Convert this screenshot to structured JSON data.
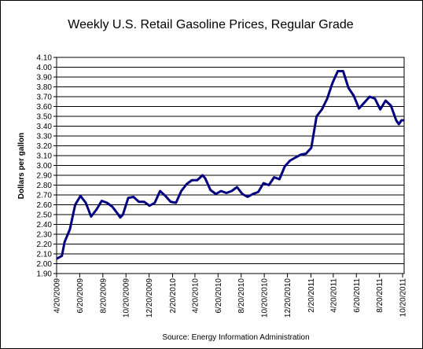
{
  "chart_data": {
    "type": "line",
    "title": "Weekly U.S. Retail Gasoline Prices, Regular Grade",
    "y_label": "Dollars per gallon",
    "source": "Source:  Energy Information Administration",
    "grid": true,
    "xlim": [
      "2009-04-20",
      "2011-10-24"
    ],
    "ylim": [
      1.9,
      4.1
    ],
    "xticks": [
      {
        "value": "2009-04-20",
        "label": "4/20/2009"
      },
      {
        "value": "2009-06-20",
        "label": "6/20/2009"
      },
      {
        "value": "2009-08-20",
        "label": "8/20/2009"
      },
      {
        "value": "2009-10-20",
        "label": "10/20/2009"
      },
      {
        "value": "2009-12-20",
        "label": "12/20/2009"
      },
      {
        "value": "2010-02-20",
        "label": "2/20/2010"
      },
      {
        "value": "2010-04-20",
        "label": "4/20/2010"
      },
      {
        "value": "2010-06-20",
        "label": "6/20/2010"
      },
      {
        "value": "2010-08-20",
        "label": "8/20/2010"
      },
      {
        "value": "2010-10-20",
        "label": "10/20/2010"
      },
      {
        "value": "2010-12-20",
        "label": "12/20/2010"
      },
      {
        "value": "2011-02-20",
        "label": "2/20/2011"
      },
      {
        "value": "2011-04-20",
        "label": "4/20/2011"
      },
      {
        "value": "2011-06-20",
        "label": "6/20/2011"
      },
      {
        "value": "2011-08-20",
        "label": "8/20/2011"
      },
      {
        "value": "2011-10-20",
        "label": "10/20/2011"
      }
    ],
    "yticks": [
      {
        "value": 1.9,
        "label": "1.90"
      },
      {
        "value": 2.0,
        "label": "2.00"
      },
      {
        "value": 2.1,
        "label": "2.10"
      },
      {
        "value": 2.2,
        "label": "2.20"
      },
      {
        "value": 2.3,
        "label": "2.30"
      },
      {
        "value": 2.4,
        "label": "2.40"
      },
      {
        "value": 2.5,
        "label": "2.50"
      },
      {
        "value": 2.6,
        "label": "2.60"
      },
      {
        "value": 2.7,
        "label": "2.70"
      },
      {
        "value": 2.8,
        "label": "2.80"
      },
      {
        "value": 2.9,
        "label": "2.90"
      },
      {
        "value": 3.0,
        "label": "3.00"
      },
      {
        "value": 3.1,
        "label": "3.10"
      },
      {
        "value": 3.2,
        "label": "3.20"
      },
      {
        "value": 3.3,
        "label": "3.30"
      },
      {
        "value": 3.4,
        "label": "3.40"
      },
      {
        "value": 3.5,
        "label": "3.50"
      },
      {
        "value": 3.6,
        "label": "3.60"
      },
      {
        "value": 3.7,
        "label": "3.70"
      },
      {
        "value": 3.8,
        "label": "3.80"
      },
      {
        "value": 3.9,
        "label": "3.90"
      },
      {
        "value": 4.0,
        "label": "4.00"
      },
      {
        "value": 4.1,
        "label": "4.10"
      }
    ],
    "x": [
      "2009-04-20",
      "2009-05-04",
      "2009-05-11",
      "2009-05-25",
      "2009-06-08",
      "2009-06-22",
      "2009-07-06",
      "2009-07-20",
      "2009-08-03",
      "2009-08-17",
      "2009-08-31",
      "2009-09-14",
      "2009-09-28",
      "2009-10-05",
      "2009-10-12",
      "2009-10-26",
      "2009-11-09",
      "2009-11-23",
      "2009-12-07",
      "2009-12-21",
      "2010-01-04",
      "2010-01-18",
      "2010-02-01",
      "2010-02-15",
      "2010-03-01",
      "2010-03-15",
      "2010-03-29",
      "2010-04-12",
      "2010-04-26",
      "2010-05-10",
      "2010-05-17",
      "2010-05-31",
      "2010-06-14",
      "2010-06-28",
      "2010-07-12",
      "2010-07-26",
      "2010-08-09",
      "2010-08-23",
      "2010-09-06",
      "2010-09-20",
      "2010-10-04",
      "2010-10-18",
      "2010-11-01",
      "2010-11-15",
      "2010-11-29",
      "2010-12-13",
      "2010-12-27",
      "2011-01-10",
      "2011-01-24",
      "2011-02-07",
      "2011-02-21",
      "2011-03-07",
      "2011-03-21",
      "2011-04-04",
      "2011-04-18",
      "2011-05-02",
      "2011-05-16",
      "2011-05-30",
      "2011-06-13",
      "2011-06-27",
      "2011-07-11",
      "2011-07-25",
      "2011-08-08",
      "2011-08-22",
      "2011-09-05",
      "2011-09-19",
      "2011-10-03",
      "2011-10-10",
      "2011-10-17",
      "2011-10-24"
    ],
    "series": [
      {
        "color": "#000080",
        "values": [
          2.05,
          2.08,
          2.22,
          2.35,
          2.6,
          2.69,
          2.62,
          2.48,
          2.55,
          2.64,
          2.62,
          2.58,
          2.51,
          2.47,
          2.5,
          2.67,
          2.68,
          2.63,
          2.63,
          2.59,
          2.62,
          2.74,
          2.69,
          2.63,
          2.62,
          2.74,
          2.81,
          2.85,
          2.85,
          2.9,
          2.87,
          2.75,
          2.71,
          2.74,
          2.72,
          2.74,
          2.78,
          2.71,
          2.68,
          2.71,
          2.73,
          2.82,
          2.8,
          2.88,
          2.86,
          2.99,
          3.05,
          3.08,
          3.11,
          3.12,
          3.18,
          3.5,
          3.57,
          3.68,
          3.84,
          3.96,
          3.96,
          3.79,
          3.71,
          3.58,
          3.64,
          3.7,
          3.68,
          3.57,
          3.66,
          3.61,
          3.46,
          3.42,
          3.46,
          3.46
        ]
      }
    ]
  }
}
